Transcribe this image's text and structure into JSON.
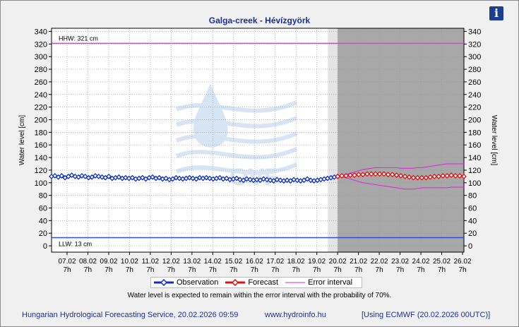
{
  "window": {
    "info_icon": "info-icon",
    "info_glyph": "i"
  },
  "chart_data": {
    "type": "line",
    "title": "Galga-creek - Hévízgyörk",
    "ylabel": "Water level [cm]",
    "ylabel_right": "Water level [cm]",
    "ylim": [
      -10,
      345
    ],
    "yticks": [
      0,
      20,
      40,
      60,
      80,
      100,
      120,
      140,
      160,
      180,
      200,
      220,
      240,
      260,
      280,
      300,
      320,
      340
    ],
    "x_ticks": [
      {
        "date": "07.02",
        "hour": "7h"
      },
      {
        "date": "08.02",
        "hour": "7h"
      },
      {
        "date": "09.02",
        "hour": "7h"
      },
      {
        "date": "10.02",
        "hour": "7h"
      },
      {
        "date": "11.02",
        "hour": "7h"
      },
      {
        "date": "12.02",
        "hour": "7h"
      },
      {
        "date": "13.02",
        "hour": "7h"
      },
      {
        "date": "14.02",
        "hour": "7h"
      },
      {
        "date": "15.02",
        "hour": "7h"
      },
      {
        "date": "16.02",
        "hour": "7h"
      },
      {
        "date": "17.02",
        "hour": "7h"
      },
      {
        "date": "18.02",
        "hour": "7h"
      },
      {
        "date": "19.02",
        "hour": "7h"
      },
      {
        "date": "20.02",
        "hour": "7h"
      },
      {
        "date": "21.02",
        "hour": "7h"
      },
      {
        "date": "22.02",
        "hour": "7h"
      },
      {
        "date": "23.02",
        "hour": "7h"
      },
      {
        "date": "24.02",
        "hour": "7h"
      },
      {
        "date": "25.02",
        "hour": "7h"
      },
      {
        "date": "26.02",
        "hour": "7h"
      }
    ],
    "thresholds": [
      {
        "label": "HHW: 321 cm",
        "value": 321,
        "color": "#e040e0"
      },
      {
        "label": "LLW: 13 cm",
        "value": 13,
        "color": "#3050d0"
      }
    ],
    "series": [
      {
        "name": "Observation",
        "color": "#1030c0",
        "values": [
          110,
          111,
          109,
          111,
          108,
          110,
          112,
          110,
          109,
          111,
          110,
          108,
          109,
          111,
          110,
          109,
          108,
          110,
          107,
          108,
          109,
          107,
          108,
          107,
          108,
          106,
          107,
          108,
          106,
          108,
          109,
          107,
          108,
          106,
          107,
          105,
          106,
          108,
          107,
          106,
          107,
          108,
          107,
          106,
          108,
          107,
          108,
          107,
          106,
          107,
          108,
          106,
          107,
          105,
          106,
          107,
          105,
          104,
          106,
          105,
          104,
          105,
          104,
          106,
          105,
          104,
          103,
          105,
          104,
          103,
          104,
          103,
          105,
          104,
          103,
          104,
          106,
          104,
          103,
          104,
          105,
          106,
          107,
          108,
          109,
          110
        ]
      },
      {
        "name": "Forecast",
        "color": "#e01010",
        "values": [
          110,
          111,
          111,
          112,
          112,
          113,
          113,
          114,
          114,
          114,
          114,
          114,
          113,
          113,
          112,
          111,
          110,
          109,
          108,
          108,
          108,
          108,
          109,
          110,
          110,
          111,
          111,
          112,
          111,
          111,
          110
        ]
      },
      {
        "name": "Error interval",
        "color": "#e020e0",
        "upper": [
          110,
          112,
          113,
          115,
          117,
          119,
          121,
          122,
          123,
          124,
          124,
          124,
          124,
          124,
          124,
          123,
          123,
          123,
          123,
          124,
          124,
          125,
          126,
          127,
          128,
          129,
          130,
          130,
          130,
          130,
          130
        ],
        "lower": [
          110,
          109,
          108,
          106,
          104,
          102,
          100,
          99,
          98,
          97,
          96,
          95,
          94,
          93,
          92,
          91,
          90,
          90,
          90,
          91,
          92,
          92,
          92,
          92,
          92,
          92,
          92,
          93,
          93,
          93,
          93
        ]
      }
    ],
    "forecast_region": "gray-shaded",
    "grid": true,
    "legend": "bottom"
  },
  "note": "Water level is expected to remain within the error interval with the probability of 70%.",
  "footer": {
    "left": "Hungarian Hydrological Forecasting Service, 20.02.2026 09:59",
    "center": "www.hydroinfo.hu",
    "right": "[Using ECMWF (20.02.2026  00UTC)]"
  },
  "watermark": {
    "text": "OVF",
    "icon": "water-drop-logo-icon"
  }
}
